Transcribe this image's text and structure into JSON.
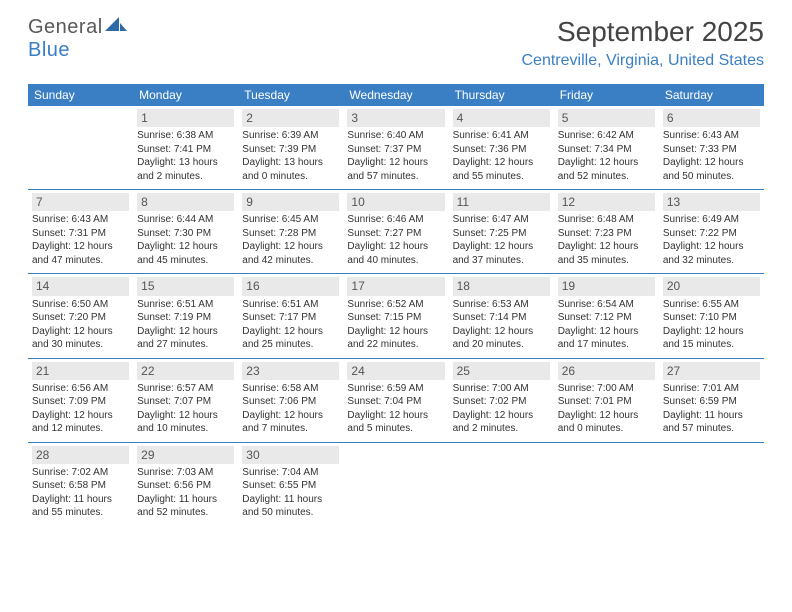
{
  "logo": {
    "part1": "General",
    "part2": "Blue"
  },
  "title": "September 2025",
  "location": "Centreville, Virginia, United States",
  "colors": {
    "accent": "#3a7fc4",
    "daynum_bg": "#e9e9e9",
    "text": "#333333",
    "logo_gray": "#595959"
  },
  "weekdays": [
    "Sunday",
    "Monday",
    "Tuesday",
    "Wednesday",
    "Thursday",
    "Friday",
    "Saturday"
  ],
  "weeks": [
    [
      null,
      {
        "n": "1",
        "sr": "Sunrise: 6:38 AM",
        "ss": "Sunset: 7:41 PM",
        "dl": "Daylight: 13 hours and 2 minutes."
      },
      {
        "n": "2",
        "sr": "Sunrise: 6:39 AM",
        "ss": "Sunset: 7:39 PM",
        "dl": "Daylight: 13 hours and 0 minutes."
      },
      {
        "n": "3",
        "sr": "Sunrise: 6:40 AM",
        "ss": "Sunset: 7:37 PM",
        "dl": "Daylight: 12 hours and 57 minutes."
      },
      {
        "n": "4",
        "sr": "Sunrise: 6:41 AM",
        "ss": "Sunset: 7:36 PM",
        "dl": "Daylight: 12 hours and 55 minutes."
      },
      {
        "n": "5",
        "sr": "Sunrise: 6:42 AM",
        "ss": "Sunset: 7:34 PM",
        "dl": "Daylight: 12 hours and 52 minutes."
      },
      {
        "n": "6",
        "sr": "Sunrise: 6:43 AM",
        "ss": "Sunset: 7:33 PM",
        "dl": "Daylight: 12 hours and 50 minutes."
      }
    ],
    [
      {
        "n": "7",
        "sr": "Sunrise: 6:43 AM",
        "ss": "Sunset: 7:31 PM",
        "dl": "Daylight: 12 hours and 47 minutes."
      },
      {
        "n": "8",
        "sr": "Sunrise: 6:44 AM",
        "ss": "Sunset: 7:30 PM",
        "dl": "Daylight: 12 hours and 45 minutes."
      },
      {
        "n": "9",
        "sr": "Sunrise: 6:45 AM",
        "ss": "Sunset: 7:28 PM",
        "dl": "Daylight: 12 hours and 42 minutes."
      },
      {
        "n": "10",
        "sr": "Sunrise: 6:46 AM",
        "ss": "Sunset: 7:27 PM",
        "dl": "Daylight: 12 hours and 40 minutes."
      },
      {
        "n": "11",
        "sr": "Sunrise: 6:47 AM",
        "ss": "Sunset: 7:25 PM",
        "dl": "Daylight: 12 hours and 37 minutes."
      },
      {
        "n": "12",
        "sr": "Sunrise: 6:48 AM",
        "ss": "Sunset: 7:23 PM",
        "dl": "Daylight: 12 hours and 35 minutes."
      },
      {
        "n": "13",
        "sr": "Sunrise: 6:49 AM",
        "ss": "Sunset: 7:22 PM",
        "dl": "Daylight: 12 hours and 32 minutes."
      }
    ],
    [
      {
        "n": "14",
        "sr": "Sunrise: 6:50 AM",
        "ss": "Sunset: 7:20 PM",
        "dl": "Daylight: 12 hours and 30 minutes."
      },
      {
        "n": "15",
        "sr": "Sunrise: 6:51 AM",
        "ss": "Sunset: 7:19 PM",
        "dl": "Daylight: 12 hours and 27 minutes."
      },
      {
        "n": "16",
        "sr": "Sunrise: 6:51 AM",
        "ss": "Sunset: 7:17 PM",
        "dl": "Daylight: 12 hours and 25 minutes."
      },
      {
        "n": "17",
        "sr": "Sunrise: 6:52 AM",
        "ss": "Sunset: 7:15 PM",
        "dl": "Daylight: 12 hours and 22 minutes."
      },
      {
        "n": "18",
        "sr": "Sunrise: 6:53 AM",
        "ss": "Sunset: 7:14 PM",
        "dl": "Daylight: 12 hours and 20 minutes."
      },
      {
        "n": "19",
        "sr": "Sunrise: 6:54 AM",
        "ss": "Sunset: 7:12 PM",
        "dl": "Daylight: 12 hours and 17 minutes."
      },
      {
        "n": "20",
        "sr": "Sunrise: 6:55 AM",
        "ss": "Sunset: 7:10 PM",
        "dl": "Daylight: 12 hours and 15 minutes."
      }
    ],
    [
      {
        "n": "21",
        "sr": "Sunrise: 6:56 AM",
        "ss": "Sunset: 7:09 PM",
        "dl": "Daylight: 12 hours and 12 minutes."
      },
      {
        "n": "22",
        "sr": "Sunrise: 6:57 AM",
        "ss": "Sunset: 7:07 PM",
        "dl": "Daylight: 12 hours and 10 minutes."
      },
      {
        "n": "23",
        "sr": "Sunrise: 6:58 AM",
        "ss": "Sunset: 7:06 PM",
        "dl": "Daylight: 12 hours and 7 minutes."
      },
      {
        "n": "24",
        "sr": "Sunrise: 6:59 AM",
        "ss": "Sunset: 7:04 PM",
        "dl": "Daylight: 12 hours and 5 minutes."
      },
      {
        "n": "25",
        "sr": "Sunrise: 7:00 AM",
        "ss": "Sunset: 7:02 PM",
        "dl": "Daylight: 12 hours and 2 minutes."
      },
      {
        "n": "26",
        "sr": "Sunrise: 7:00 AM",
        "ss": "Sunset: 7:01 PM",
        "dl": "Daylight: 12 hours and 0 minutes."
      },
      {
        "n": "27",
        "sr": "Sunrise: 7:01 AM",
        "ss": "Sunset: 6:59 PM",
        "dl": "Daylight: 11 hours and 57 minutes."
      }
    ],
    [
      {
        "n": "28",
        "sr": "Sunrise: 7:02 AM",
        "ss": "Sunset: 6:58 PM",
        "dl": "Daylight: 11 hours and 55 minutes."
      },
      {
        "n": "29",
        "sr": "Sunrise: 7:03 AM",
        "ss": "Sunset: 6:56 PM",
        "dl": "Daylight: 11 hours and 52 minutes."
      },
      {
        "n": "30",
        "sr": "Sunrise: 7:04 AM",
        "ss": "Sunset: 6:55 PM",
        "dl": "Daylight: 11 hours and 50 minutes."
      },
      null,
      null,
      null,
      null
    ]
  ]
}
